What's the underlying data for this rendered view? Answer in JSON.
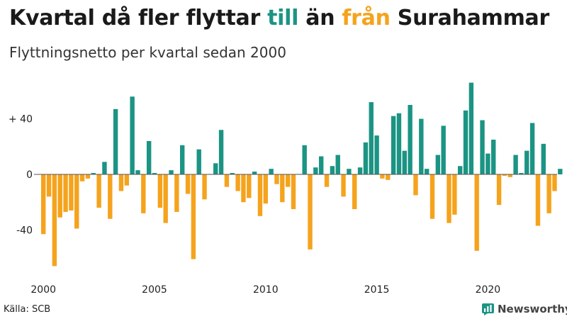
{
  "header": {
    "title_part1": "Kvartal då fler flyttar ",
    "title_till": "till",
    "title_part2": " än ",
    "title_fran": "från",
    "title_part3": " Surahammar",
    "subtitle": "Flyttningsnetto per kvartal sedan 2000"
  },
  "footer": {
    "source": "Källa: SCB",
    "brand": "Newsworthy"
  },
  "colors": {
    "positive": "#1b9484",
    "negative": "#f5a31d",
    "baseline": "#555555"
  },
  "icons": {
    "brand_logo": "bar-chart-bubble-icon"
  },
  "chart_data": {
    "type": "bar",
    "title": "Kvartal då fler flyttar till än från Surahammar",
    "subtitle": "Flyttningsnetto per kvartal sedan 2000",
    "xlabel": "",
    "ylabel": "",
    "ylim": [
      -70,
      70
    ],
    "grid": false,
    "y_ticks": [
      {
        "value": 40,
        "label": "+ 40"
      },
      {
        "value": 0,
        "label": "0"
      },
      {
        "value": -40,
        "label": "-40"
      }
    ],
    "x_ticks": [
      {
        "year": 2000,
        "label": "2000"
      },
      {
        "year": 2005,
        "label": "2005"
      },
      {
        "year": 2010,
        "label": "2010"
      },
      {
        "year": 2015,
        "label": "2015"
      },
      {
        "year": 2020,
        "label": "2020"
      }
    ],
    "start": {
      "year": 2000,
      "quarter": 1
    },
    "values": [
      -43,
      -16,
      -66,
      -31,
      -27,
      -26,
      -39,
      -5,
      -3,
      1,
      -24,
      9,
      -32,
      47,
      -12,
      -8,
      56,
      3,
      -28,
      24,
      1,
      -24,
      -35,
      3,
      -27,
      21,
      -14,
      -61,
      18,
      -18,
      0,
      8,
      32,
      -9,
      1,
      -12,
      -20,
      -17,
      2,
      -30,
      -21,
      4,
      -7,
      -20,
      -9,
      -25,
      0,
      21,
      -54,
      5,
      13,
      -9,
      6,
      14,
      -16,
      4,
      -25,
      5,
      23,
      52,
      28,
      -3,
      -4,
      42,
      44,
      17,
      50,
      -15,
      40,
      4,
      -32,
      14,
      35,
      -35,
      -29,
      6,
      46,
      66,
      -55,
      39,
      15,
      25,
      -22,
      -1,
      -2,
      14,
      1,
      17,
      37,
      -37,
      22,
      -28,
      -12,
      4
    ]
  }
}
